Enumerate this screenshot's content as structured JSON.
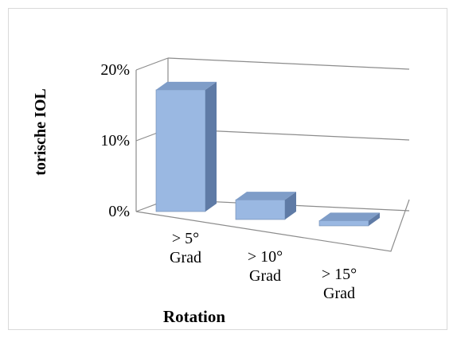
{
  "chart_data": {
    "type": "bar",
    "style": "3d-column",
    "categories": [
      "> 5° Grad",
      "> 10° Grad",
      "> 15° Grad"
    ],
    "category_lines": [
      [
        "> 5°",
        "Grad"
      ],
      [
        "> 10°",
        "Grad"
      ],
      [
        "> 15°",
        "Grad"
      ]
    ],
    "values": [
      18.5,
      3.0,
      0.8
    ],
    "unit": "%",
    "ylabel": "torische IOL",
    "xlabel": "Rotation",
    "ylim": [
      0,
      20
    ],
    "yticks": [
      "0%",
      "10%",
      "20%"
    ],
    "ytick_values": [
      0,
      10,
      20
    ],
    "grid": true,
    "legend": "none",
    "colors": {
      "bar_front": "#9ab8e2",
      "bar_side": "#5f7ba6",
      "bar_top": "#7f9dc8",
      "gridline": "#8c8c8c"
    }
  }
}
